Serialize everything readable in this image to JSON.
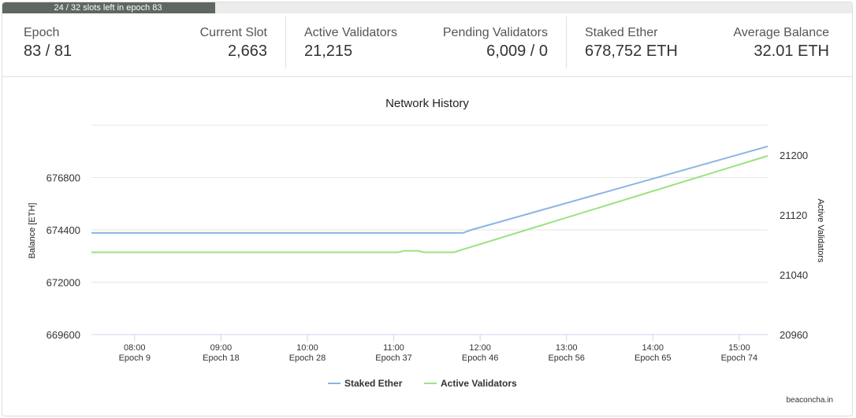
{
  "progress": {
    "text": "24 / 32 slots left in epoch 83",
    "fraction": 0.25
  },
  "stats": {
    "epoch": {
      "label": "Epoch",
      "value": "83 / 81"
    },
    "current_slot": {
      "label": "Current Slot",
      "value": "2,663"
    },
    "active_validators": {
      "label": "Active Validators",
      "value": "21,215"
    },
    "pending_validators": {
      "label": "Pending Validators",
      "value": "6,009 / 0"
    },
    "staked_ether": {
      "label": "Staked Ether",
      "value": "678,752 ETH"
    },
    "average_balance": {
      "label": "Average Balance",
      "value": "32.01 ETH"
    }
  },
  "chart_data": {
    "type": "line",
    "title": "Network History",
    "ylabel": "Balance [ETH]",
    "y2label": "Active Validators",
    "ylim": [
      669600,
      679200
    ],
    "y2lim": [
      20960,
      21240
    ],
    "yticks": [
      669600,
      672000,
      674400,
      676800
    ],
    "y2ticks": [
      20960,
      21040,
      21120,
      21200
    ],
    "xlim": [
      7.5,
      15.33
    ],
    "xticks": [
      {
        "x": 8,
        "time": "08:00",
        "epoch": "Epoch 9"
      },
      {
        "x": 9,
        "time": "09:00",
        "epoch": "Epoch 18"
      },
      {
        "x": 10,
        "time": "10:00",
        "epoch": "Epoch 28"
      },
      {
        "x": 11,
        "time": "11:00",
        "epoch": "Epoch 37"
      },
      {
        "x": 12,
        "time": "12:00",
        "epoch": "Epoch 46"
      },
      {
        "x": 13,
        "time": "13:00",
        "epoch": "Epoch 56"
      },
      {
        "x": 14,
        "time": "14:00",
        "epoch": "Epoch 65"
      },
      {
        "x": 15,
        "time": "15:00",
        "epoch": "Epoch 74"
      }
    ],
    "grid": true,
    "legend": "bottom",
    "series": [
      {
        "name": "Staked Ether",
        "axis": "left",
        "color": "#8bb4e3",
        "points": [
          [
            7.5,
            674260
          ],
          [
            11.8,
            674260
          ],
          [
            11.9,
            674400
          ],
          [
            15.33,
            678230
          ]
        ]
      },
      {
        "name": "Active Validators",
        "axis": "right",
        "color": "#9be27f",
        "points": [
          [
            7.5,
            21070
          ],
          [
            11.05,
            21070
          ],
          [
            11.12,
            21072
          ],
          [
            11.28,
            21072
          ],
          [
            11.35,
            21070
          ],
          [
            11.7,
            21070
          ],
          [
            11.78,
            21073
          ],
          [
            15.33,
            21199
          ]
        ]
      }
    ]
  },
  "footer": {
    "source": "beaconcha.in"
  }
}
